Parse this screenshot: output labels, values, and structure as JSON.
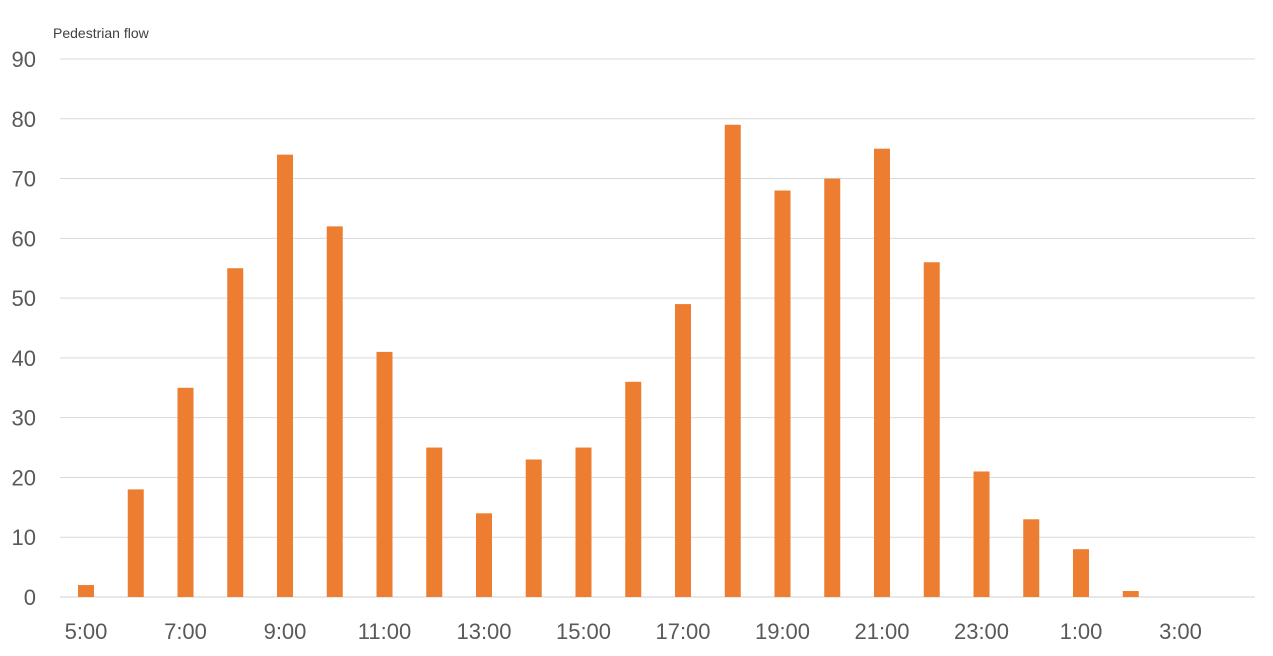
{
  "chart_data": {
    "type": "bar",
    "ylabel": "Pedestrian flow",
    "xlabel": "",
    "ylim": [
      0,
      90
    ],
    "yticks": [
      0,
      10,
      20,
      30,
      40,
      50,
      60,
      70,
      80,
      90
    ],
    "grid": true,
    "bar_color": "#ED7D31",
    "categories": [
      "5:00",
      "6:00",
      "7:00",
      "8:00",
      "9:00",
      "10:00",
      "11:00",
      "12:00",
      "13:00",
      "14:00",
      "15:00",
      "16:00",
      "17:00",
      "18:00",
      "19:00",
      "20:00",
      "21:00",
      "22:00",
      "23:00",
      "0:00",
      "1:00",
      "2:00",
      "3:00",
      "4:00"
    ],
    "tick_labels_shown": [
      "5:00",
      "7:00",
      "9:00",
      "11:00",
      "13:00",
      "15:00",
      "17:00",
      "19:00",
      "21:00",
      "23:00",
      "1:00",
      "3:00"
    ],
    "values": [
      2,
      18,
      35,
      55,
      74,
      62,
      41,
      25,
      14,
      23,
      25,
      36,
      49,
      79,
      68,
      70,
      75,
      56,
      21,
      13,
      8,
      1,
      0,
      0
    ]
  }
}
